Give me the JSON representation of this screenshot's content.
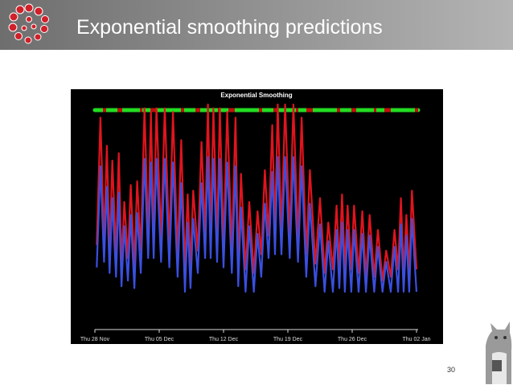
{
  "header": {
    "title": "Exponential smoothing predictions"
  },
  "chart_data": {
    "type": "line",
    "title": "Exponential Smoothing",
    "x": [
      0.2,
      0.6,
      1.0,
      1.3,
      1.6,
      1.9,
      2.3,
      2.6,
      2.9,
      3.2,
      3.6,
      3.9,
      4.3,
      4.6,
      5.0,
      5.4,
      5.8,
      6.1,
      6.4,
      6.7,
      7.2,
      7.6,
      8.1,
      8.5,
      9.0,
      9.4,
      9.8,
      10.1,
      10.4,
      10.7,
      11.2,
      11.6,
      12.0,
      12.3,
      12.6,
      12.9,
      13.3,
      13.6,
      14.0,
      14.4,
      14.9,
      15.3,
      15.6,
      15.9,
      16.4,
      16.8,
      17.3,
      17.7,
      18.1,
      18.5,
      18.9,
      19.3,
      19.6,
      19.9,
      20.3,
      20.7,
      21.2,
      21.6,
      22.1,
      22.5,
      23.0,
      23.4,
      24.0,
      24.5,
      25.0,
      25.4,
      25.9,
      26.3,
      26.6,
      26.9,
      27.2,
      27.5,
      27.9,
      28.2,
      28.7,
      29.1,
      29.5,
      29.9,
      30.4,
      30.8,
      31.3,
      31.7,
      32.2,
      32.6,
      33.0,
      33.3,
      33.6,
      33.9,
      34.2,
      34.5,
      35.0
    ],
    "xlim": [
      0,
      35
    ],
    "xticks": [
      {
        "value": 0,
        "label": "Thu 28 Nov"
      },
      {
        "value": 7,
        "label": "Thu 05 Dec"
      },
      {
        "value": 14,
        "label": "Thu 12 Dec"
      },
      {
        "value": 21,
        "label": "Thu 19 Dec"
      },
      {
        "value": 28,
        "label": "Thu 26 Dec"
      },
      {
        "value": 35,
        "label": "Thu 02 Jan"
      }
    ],
    "ylim": [
      -15,
      100
    ],
    "series": [
      {
        "color": "#e0141e",
        "values": [
          25,
          93,
          28,
          78,
          22,
          70,
          20,
          74,
          15,
          48,
          18,
          57,
          14,
          59,
          22,
          98,
          30,
          96,
          30,
          98,
          28,
          98,
          25,
          96,
          20,
          81,
          12,
          52,
          14,
          54,
          22,
          80,
          30,
          100,
          30,
          98,
          28,
          98,
          25,
          96,
          22,
          93,
          15,
          63,
          12,
          48,
          10,
          43,
          20,
          65,
          30,
          89,
          32,
          100,
          32,
          100,
          30,
          100,
          28,
          93,
          20,
          65,
          15,
          50,
          10,
          37,
          12,
          46,
          14,
          52,
          12,
          46,
          12,
          46,
          10,
          43,
          8,
          41,
          8,
          33,
          6,
          22,
          8,
          33,
          12,
          50,
          10,
          41,
          10,
          54,
          12
        ]
      },
      {
        "color": "#3a4fe0",
        "values": [
          13,
          67,
          16,
          56,
          10,
          50,
          8,
          53,
          3,
          35,
          6,
          41,
          2,
          42,
          10,
          71,
          18,
          69,
          18,
          71,
          16,
          71,
          13,
          69,
          8,
          58,
          0,
          37,
          2,
          39,
          10,
          58,
          18,
          72,
          18,
          71,
          16,
          71,
          13,
          69,
          10,
          67,
          3,
          45,
          0,
          35,
          0,
          31,
          8,
          47,
          18,
          64,
          20,
          72,
          20,
          72,
          18,
          72,
          16,
          67,
          8,
          47,
          3,
          36,
          0,
          27,
          0,
          33,
          2,
          37,
          0,
          33,
          0,
          33,
          0,
          31,
          0,
          30,
          0,
          24,
          0,
          16,
          0,
          24,
          0,
          36,
          0,
          30,
          0,
          39,
          0
        ]
      }
    ]
  },
  "footer": {
    "page_number": "30"
  }
}
